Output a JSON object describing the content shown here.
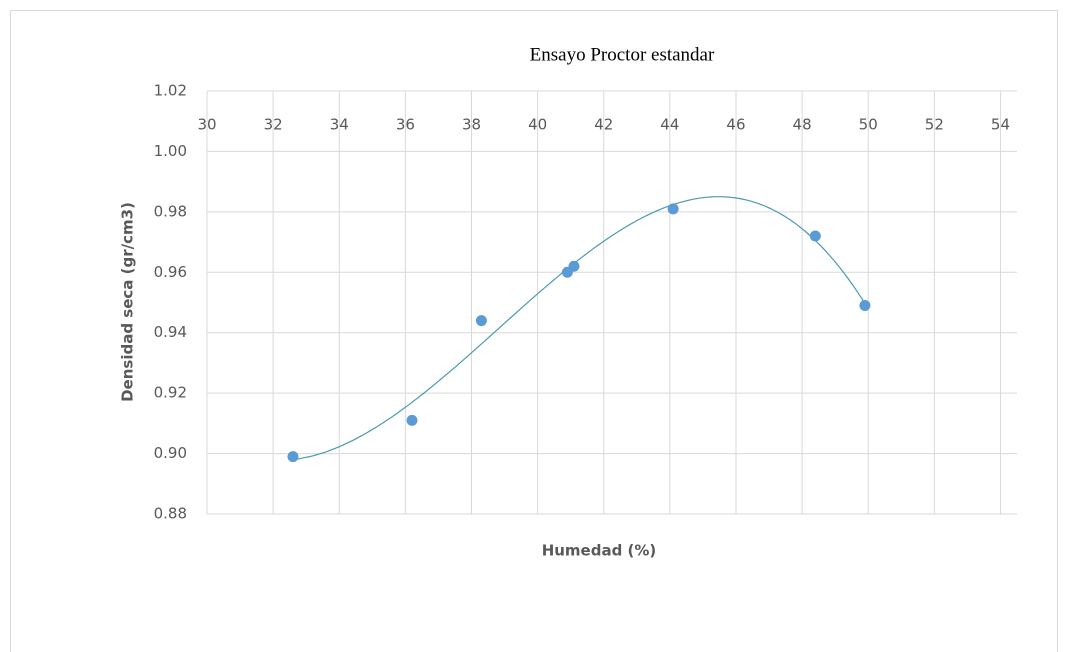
{
  "chart_data": {
    "type": "scatter",
    "title": "Ensayo Proctor estandar",
    "x_label": "Humedad (%)",
    "y_label": "Densidad seca (gr/cm3)",
    "x": [
      32.6,
      36.2,
      38.3,
      40.9,
      41.1,
      44.1,
      48.4,
      49.9
    ],
    "values": [
      0.899,
      0.911,
      0.944,
      0.96,
      0.962,
      0.981,
      0.972,
      0.949
    ],
    "color": "#5b9bd5",
    "trendline": {
      "type": "polynomial",
      "order": 3,
      "color": "#4a9ab0"
    },
    "xlim": [
      30,
      54.5
    ],
    "xticks": [
      30,
      32,
      34,
      36,
      38,
      40,
      42,
      44,
      46,
      48,
      50,
      52,
      54
    ],
    "ylim": [
      0.88,
      1.02
    ],
    "yticks": [
      {
        "value": 0.88,
        "label": "0.88"
      },
      {
        "value": 0.9,
        "label": "0.90"
      },
      {
        "value": 0.92,
        "label": "0.92"
      },
      {
        "value": 0.94,
        "label": "0.94"
      },
      {
        "value": 0.96,
        "label": "0.96"
      },
      {
        "value": 0.98,
        "label": "0.98"
      },
      {
        "value": 1.0,
        "label": "1.00"
      },
      {
        "value": 1.02,
        "label": "1.02"
      }
    ],
    "grid": true
  }
}
